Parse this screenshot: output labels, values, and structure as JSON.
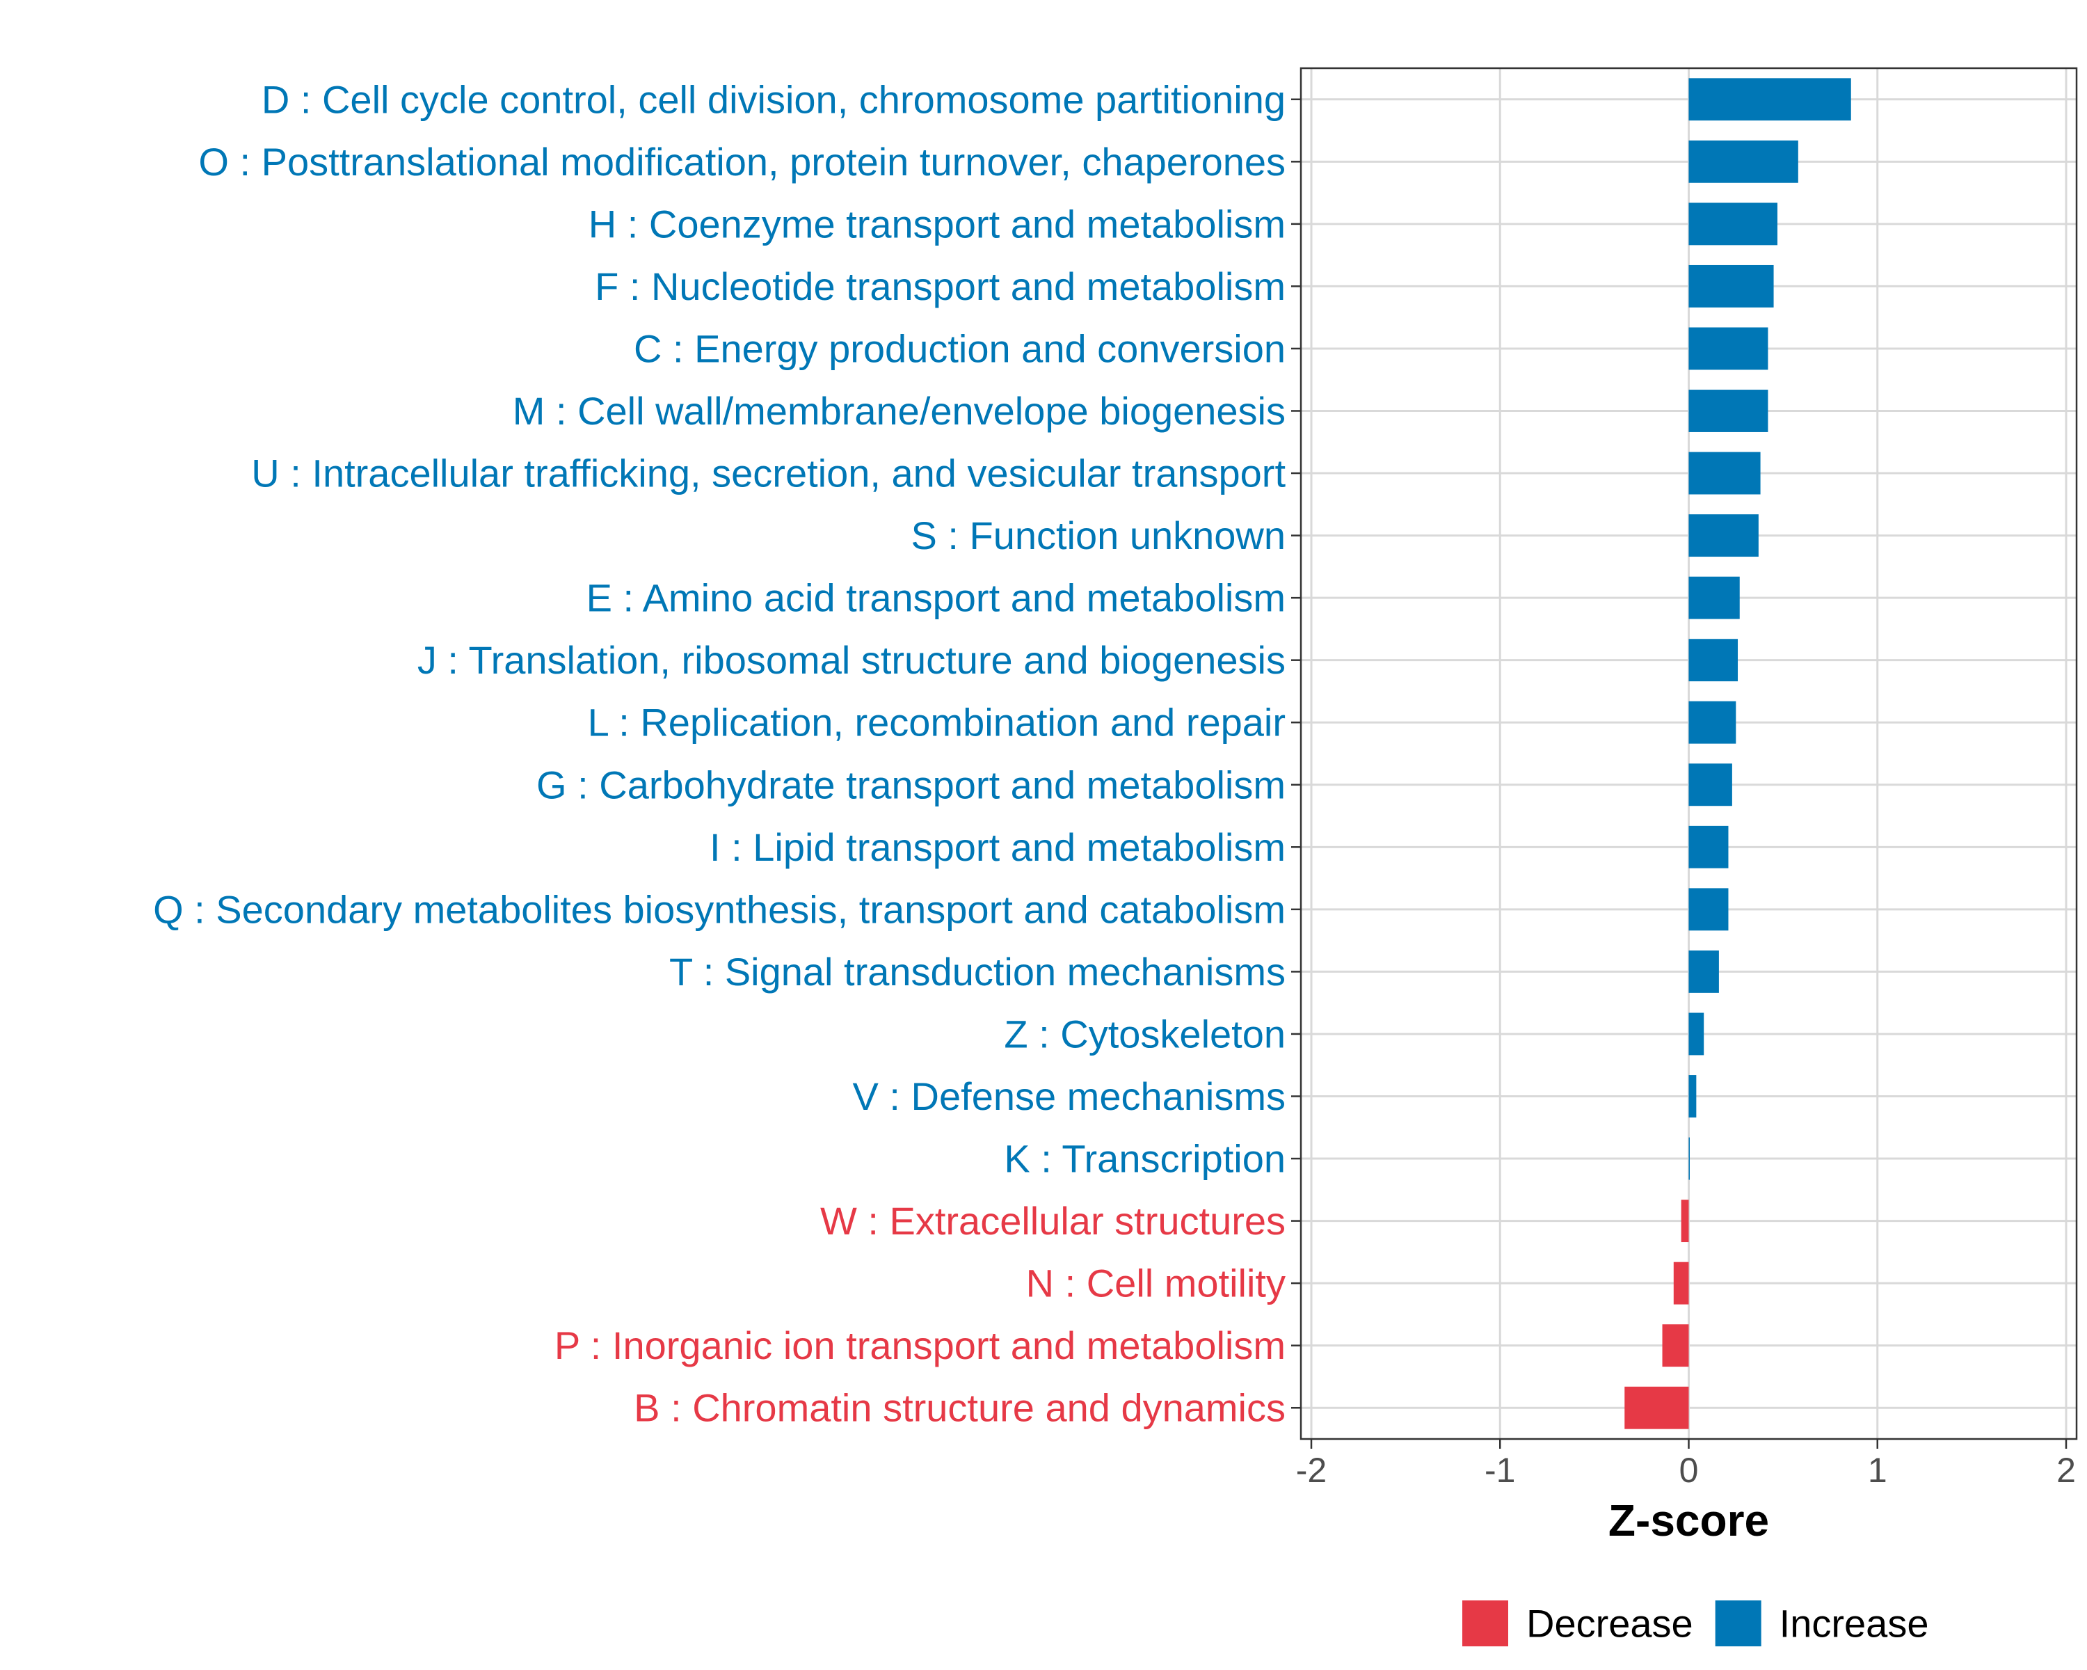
{
  "chart_data": {
    "type": "bar",
    "orientation": "horizontal",
    "categories": [
      "D : Cell cycle control, cell division, chromosome partitioning",
      "O : Posttranslational modification, protein turnover, chaperones",
      "H : Coenzyme transport and metabolism",
      "F : Nucleotide transport and metabolism",
      "C : Energy production and conversion",
      "M : Cell wall/membrane/envelope biogenesis",
      "U : Intracellular trafficking, secretion, and vesicular transport",
      "S : Function unknown",
      "E : Amino acid transport and metabolism",
      "J : Translation, ribosomal structure and biogenesis",
      "L : Replication, recombination and repair",
      "G : Carbohydrate transport and metabolism",
      "I : Lipid transport and metabolism",
      "Q : Secondary metabolites biosynthesis, transport and catabolism",
      "T : Signal transduction mechanisms",
      "Z : Cytoskeleton",
      "V : Defense mechanisms",
      "K : Transcription",
      "W : Extracellular structures",
      "N : Cell motility",
      "P : Inorganic ion transport and metabolism",
      "B : Chromatin structure and dynamics"
    ],
    "values": [
      0.86,
      0.58,
      0.47,
      0.45,
      0.42,
      0.42,
      0.38,
      0.37,
      0.27,
      0.26,
      0.25,
      0.23,
      0.21,
      0.21,
      0.16,
      0.08,
      0.04,
      0.005,
      -0.04,
      -0.08,
      -0.14,
      -0.34
    ],
    "groups": [
      "Increase",
      "Increase",
      "Increase",
      "Increase",
      "Increase",
      "Increase",
      "Increase",
      "Increase",
      "Increase",
      "Increase",
      "Increase",
      "Increase",
      "Increase",
      "Increase",
      "Increase",
      "Increase",
      "Increase",
      "Increase",
      "Decrease",
      "Decrease",
      "Decrease",
      "Decrease"
    ],
    "title": "",
    "xlabel": "Z-score",
    "ylabel": "",
    "xlim": [
      -2,
      2
    ],
    "xticks": [
      -2,
      -1,
      0,
      1,
      2
    ],
    "xtick_labels": [
      "-2",
      "-1",
      "0",
      "1",
      "2"
    ],
    "grid": true,
    "legend": {
      "position": "bottom",
      "entries": [
        {
          "label": "Decrease",
          "color": "#e63946"
        },
        {
          "label": "Increase",
          "color": "#0077b6"
        }
      ]
    },
    "colors": {
      "Increase": "#0077b6",
      "Decrease": "#e63946"
    }
  }
}
